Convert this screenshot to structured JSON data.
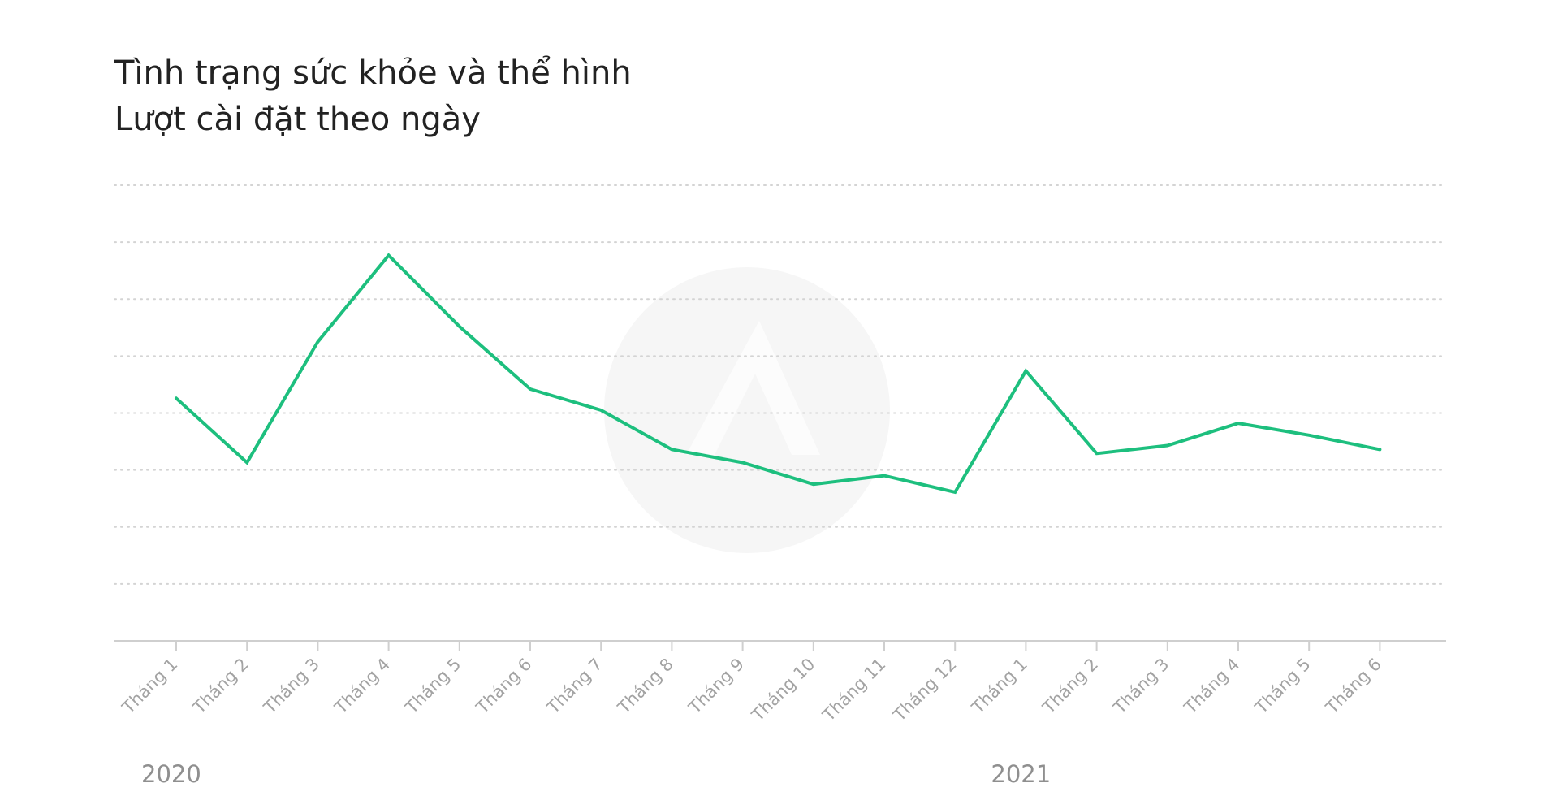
{
  "chart_data": {
    "type": "line",
    "title": "Tình trạng sức khỏe và thể hình",
    "subtitle": "Lượt cài đặt theo ngày",
    "categories": [
      "Tháng 1",
      "Tháng 2",
      "Tháng 3",
      "Tháng 4",
      "Tháng 5",
      "Tháng 6",
      "Tháng 7",
      "Tháng 8",
      "Tháng 9",
      "Tháng 10",
      "Tháng 11",
      "Tháng 12",
      "Tháng 1",
      "Tháng 2",
      "Tháng 3",
      "Tháng 4",
      "Tháng 5",
      "Tháng 6"
    ],
    "year_labels": [
      {
        "label": "2020",
        "category_index": 0
      },
      {
        "label": "2021",
        "category_index": 12
      }
    ],
    "series": [
      {
        "color": "#1dbf7e",
        "values": [
          4.26,
          3.13,
          5.25,
          6.77,
          5.52,
          4.42,
          4.05,
          3.36,
          3.13,
          2.75,
          2.9,
          2.61,
          4.74,
          3.29,
          3.43,
          3.82,
          3.61,
          3.36
        ]
      }
    ],
    "ylim": [
      0,
      8
    ],
    "gridlines": 8,
    "grid": true,
    "grid_style": "dotted",
    "y_tick_labels": false,
    "colors": {
      "line": "#1dbf7e",
      "grid": "#d4d4d4",
      "axis": "#cfcfcf",
      "text": "#a3a3a3"
    }
  }
}
